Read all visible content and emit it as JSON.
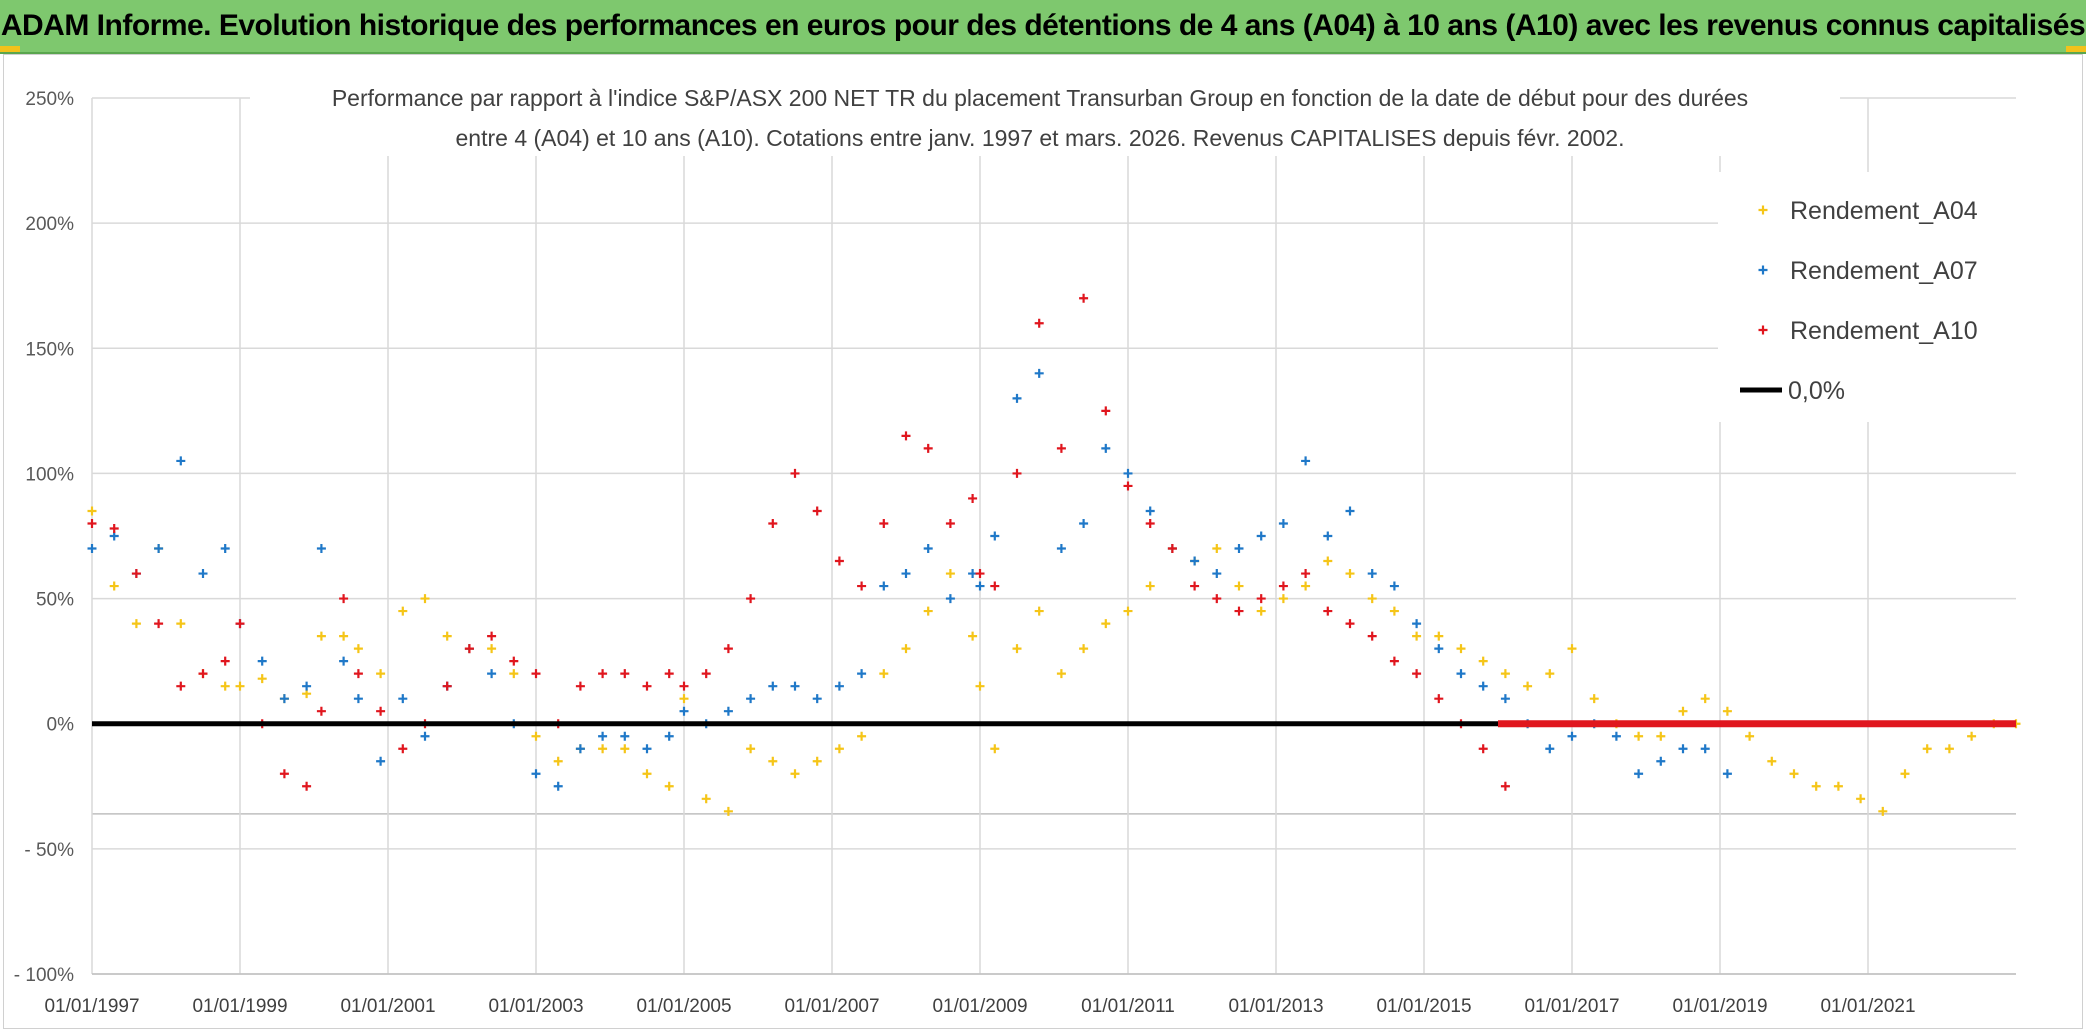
{
  "banner": {
    "title": "ADAM Informe. Evolution historique des performances en euros pour des détentions de 4 ans (A04) à 10 ans (A10) avec les revenus connus capitalisés"
  },
  "chart_data": {
    "type": "scatter",
    "title_line1": "Performance par rapport à l'indice S&P/ASX 200 NET TR  du placement Transurban Group en fonction de la date de début pour des durées",
    "title_line2": "entre 4 (A04) et 10 ans (A10). Cotations entre janv. 1997 et mars. 2026. Revenus CAPITALISES depuis févr. 2002.",
    "xlabel": "",
    "ylabel": "",
    "x_range": [
      1997.0,
      2023.0
    ],
    "ylim": [
      -100,
      250
    ],
    "y_ticks": [
      250,
      200,
      150,
      100,
      50,
      0,
      -50,
      -100
    ],
    "y_tick_labels": [
      "250%",
      "200%",
      "150%",
      "100%",
      "50%",
      "0%",
      "- 50%",
      "- 100%"
    ],
    "x_ticks": [
      1997,
      1999,
      2001,
      2003,
      2005,
      2007,
      2009,
      2011,
      2013,
      2015,
      2017,
      2019,
      2021
    ],
    "x_tick_labels": [
      "01/01/1997",
      "01/01/1999",
      "01/01/2001",
      "01/01/2003",
      "01/01/2005",
      "01/01/2007",
      "01/01/2009",
      "01/01/2011",
      "01/01/2013",
      "01/01/2015",
      "01/01/2017",
      "01/01/2019",
      "01/01/2021"
    ],
    "grid": true,
    "legend_position": "top-right",
    "series": [
      {
        "name": "Rendement_A04",
        "color": "#f5c518",
        "x": [
          1997.0,
          1997.3,
          1997.6,
          1997.9,
          1998.2,
          1998.5,
          1998.8,
          1999.0,
          1999.3,
          1999.6,
          1999.9,
          2000.1,
          2000.4,
          2000.6,
          2000.9,
          2001.2,
          2001.5,
          2001.8,
          2002.1,
          2002.4,
          2002.7,
          2003.0,
          2003.3,
          2003.6,
          2003.9,
          2004.2,
          2004.5,
          2004.8,
          2005.0,
          2005.3,
          2005.6,
          2005.9,
          2006.2,
          2006.5,
          2006.8,
          2007.1,
          2007.4,
          2007.7,
          2008.0,
          2008.3,
          2008.6,
          2008.9,
          2009.0,
          2009.2,
          2009.5,
          2009.8,
          2010.1,
          2010.4,
          2010.7,
          2011.0,
          2011.3,
          2011.6,
          2011.9,
          2012.2,
          2012.5,
          2012.8,
          2013.1,
          2013.4,
          2013.7,
          2014.0,
          2014.3,
          2014.6,
          2014.9,
          2015.2,
          2015.5,
          2015.8,
          2016.1,
          2016.4,
          2016.7,
          2017.0,
          2017.3,
          2017.6,
          2017.9,
          2018.2,
          2018.5,
          2018.8,
          2019.1,
          2019.4,
          2019.7,
          2020.0,
          2020.3,
          2020.6,
          2020.9,
          2021.2,
          2021.5,
          2021.8,
          2022.1,
          2022.4,
          2022.7,
          2023.0
        ],
        "y": [
          85,
          55,
          40,
          70,
          40,
          20,
          15,
          15,
          18,
          10,
          12,
          35,
          35,
          30,
          20,
          45,
          50,
          35,
          30,
          30,
          20,
          -5,
          -15,
          -10,
          -10,
          -10,
          -20,
          -25,
          10,
          -30,
          -35,
          -10,
          -15,
          -20,
          -15,
          -10,
          -5,
          20,
          30,
          45,
          60,
          35,
          15,
          -10,
          30,
          45,
          20,
          30,
          40,
          45,
          55,
          70,
          65,
          70,
          55,
          45,
          50,
          55,
          65,
          60,
          50,
          45,
          35,
          35,
          30,
          25,
          20,
          15,
          20,
          30,
          10,
          0,
          -5,
          -5,
          5,
          10,
          5,
          -5,
          -15,
          -20,
          -25,
          -25,
          -30,
          -35,
          -20,
          -10,
          -10,
          -5,
          0,
          0
        ]
      },
      {
        "name": "Rendement_A07",
        "color": "#1f78c8",
        "x": [
          1997.0,
          1997.3,
          1997.6,
          1997.9,
          1998.2,
          1998.5,
          1998.8,
          1999.0,
          1999.3,
          1999.6,
          1999.9,
          2000.1,
          2000.4,
          2000.6,
          2000.9,
          2001.2,
          2001.5,
          2001.8,
          2002.1,
          2002.4,
          2002.7,
          2003.0,
          2003.3,
          2003.6,
          2003.9,
          2004.2,
          2004.5,
          2004.8,
          2005.0,
          2005.3,
          2005.6,
          2005.9,
          2006.2,
          2006.5,
          2006.8,
          2007.1,
          2007.4,
          2007.7,
          2008.0,
          2008.3,
          2008.6,
          2008.9,
          2009.0,
          2009.2,
          2009.5,
          2009.8,
          2010.1,
          2010.4,
          2010.7,
          2011.0,
          2011.3,
          2011.6,
          2011.9,
          2012.2,
          2012.5,
          2012.8,
          2013.1,
          2013.4,
          2013.7,
          2014.0,
          2014.3,
          2014.6,
          2014.9,
          2015.2,
          2015.5,
          2015.8,
          2016.1,
          2016.4,
          2016.7,
          2017.0,
          2017.3,
          2017.6,
          2017.9,
          2018.2,
          2018.5,
          2018.8,
          2019.1
        ],
        "y": [
          70,
          75,
          60,
          70,
          105,
          60,
          70,
          40,
          25,
          10,
          15,
          70,
          25,
          10,
          -15,
          10,
          -5,
          15,
          30,
          20,
          0,
          -20,
          -25,
          -10,
          -5,
          -5,
          -10,
          -5,
          5,
          0,
          5,
          10,
          15,
          15,
          10,
          15,
          20,
          55,
          60,
          70,
          50,
          60,
          55,
          75,
          130,
          140,
          70,
          80,
          110,
          100,
          85,
          70,
          65,
          60,
          70,
          75,
          80,
          105,
          75,
          85,
          60,
          55,
          40,
          30,
          20,
          15,
          10,
          0,
          -10,
          -5,
          0,
          -5,
          -20,
          -15,
          -10,
          -10,
          -20
        ]
      },
      {
        "name": "Rendement_A10",
        "color": "#e0161e",
        "x": [
          1997.0,
          1997.3,
          1997.6,
          1997.9,
          1998.2,
          1998.5,
          1998.8,
          1999.0,
          1999.3,
          1999.6,
          1999.9,
          2000.1,
          2000.4,
          2000.6,
          2000.9,
          2001.2,
          2001.5,
          2001.8,
          2002.1,
          2002.4,
          2002.7,
          2003.0,
          2003.3,
          2003.6,
          2003.9,
          2004.2,
          2004.5,
          2004.8,
          2005.0,
          2005.3,
          2005.6,
          2005.9,
          2006.2,
          2006.5,
          2006.8,
          2007.1,
          2007.4,
          2007.7,
          2008.0,
          2008.3,
          2008.6,
          2008.9,
          2009.0,
          2009.2,
          2009.5,
          2009.8,
          2010.1,
          2010.4,
          2010.7,
          2011.0,
          2011.3,
          2011.6,
          2011.9,
          2012.2,
          2012.5,
          2012.8,
          2013.1,
          2013.4,
          2013.7,
          2014.0,
          2014.3,
          2014.6,
          2014.9,
          2015.2,
          2015.5,
          2015.8,
          2016.1
        ],
        "y": [
          80,
          78,
          60,
          40,
          15,
          20,
          25,
          40,
          0,
          -20,
          -25,
          5,
          50,
          20,
          5,
          -10,
          0,
          15,
          30,
          35,
          25,
          20,
          0,
          15,
          20,
          20,
          15,
          20,
          15,
          20,
          30,
          50,
          80,
          100,
          85,
          65,
          55,
          80,
          115,
          110,
          80,
          90,
          60,
          55,
          100,
          160,
          110,
          170,
          125,
          95,
          80,
          70,
          55,
          50,
          45,
          50,
          55,
          60,
          45,
          40,
          35,
          25,
          20,
          10,
          0,
          -10,
          -25
        ]
      },
      {
        "name": "0,0%",
        "color": "#000000",
        "x": [
          1997.0,
          2023.0
        ],
        "y": [
          0,
          0
        ]
      }
    ]
  }
}
